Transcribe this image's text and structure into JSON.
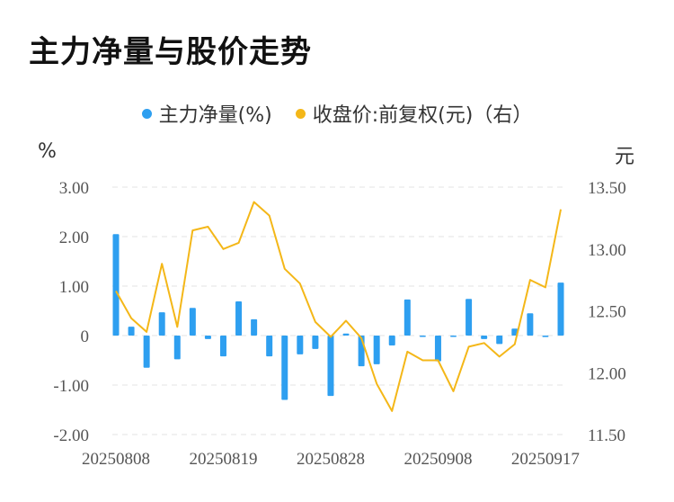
{
  "title": "主力净量与股价走势",
  "legend": {
    "series1": "主力净量(%)",
    "series2": "收盘价:前复权(元)（右）"
  },
  "colors": {
    "bar": "#2e9ff0",
    "line": "#f4b718",
    "grid": "#e3e3e3"
  },
  "chart_data": {
    "type": "bar+line",
    "left_axis": {
      "unit": "%",
      "min": -2,
      "max": 3,
      "ticks": [
        3,
        2,
        1,
        0,
        -1,
        -2
      ],
      "tick_labels": [
        "3.00",
        "2.00",
        "1.00",
        "0",
        "-1.00",
        "-2.00"
      ]
    },
    "right_axis": {
      "unit": "元",
      "min": 11.5,
      "max": 13.5,
      "ticks": [
        13.5,
        13.0,
        12.5,
        12.0,
        11.5
      ],
      "tick_labels": [
        "13.50",
        "13.00",
        "12.50",
        "12.00",
        "11.50"
      ]
    },
    "x_labels": [
      {
        "index": 0,
        "label": "20250808"
      },
      {
        "index": 7,
        "label": "20250819"
      },
      {
        "index": 14,
        "label": "20250828"
      },
      {
        "index": 21,
        "label": "20250908"
      },
      {
        "index": 28,
        "label": "20250917"
      }
    ],
    "series": [
      {
        "name": "主力净量(%)",
        "axis": "left",
        "type": "bar",
        "values": [
          2.05,
          0.18,
          -0.65,
          0.47,
          -0.48,
          0.56,
          -0.07,
          -0.42,
          0.69,
          0.33,
          -0.42,
          -1.3,
          -0.38,
          -0.27,
          -1.22,
          0.04,
          -0.62,
          -0.58,
          -0.2,
          0.73,
          -0.02,
          -0.52,
          -0.02,
          0.74,
          -0.07,
          -0.17,
          0.14,
          0.45,
          -0.03,
          1.07
        ]
      },
      {
        "name": "收盘价:前复权(元)（右）",
        "axis": "right",
        "type": "line",
        "values": [
          12.66,
          12.44,
          12.33,
          12.88,
          12.37,
          13.15,
          13.18,
          13.0,
          13.05,
          13.38,
          13.27,
          12.84,
          12.72,
          12.41,
          12.29,
          12.42,
          12.28,
          11.91,
          11.69,
          12.17,
          12.1,
          12.1,
          11.85,
          12.21,
          12.24,
          12.13,
          12.23,
          12.75,
          12.69,
          13.32
        ]
      }
    ]
  }
}
